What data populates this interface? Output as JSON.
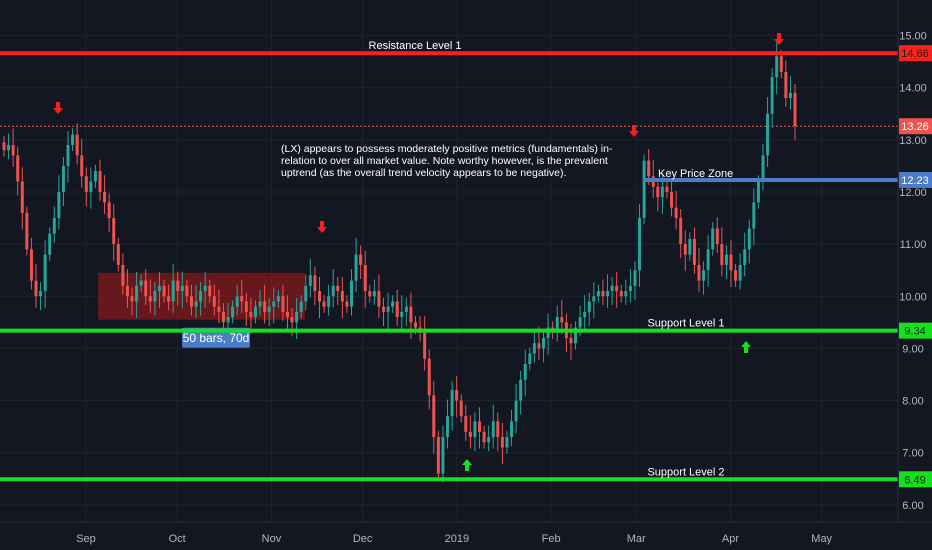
{
  "chart_data": {
    "type": "candlestick",
    "title": "",
    "xlabel": "",
    "ylabel": "",
    "ylim": [
      5.6,
      15.6
    ],
    "grid": true,
    "y_ticks": [
      "6.00",
      "7.00",
      "8.00",
      "9.00",
      "10.00",
      "11.00",
      "12.00",
      "13.00",
      "14.00",
      "15.00"
    ],
    "y_tick_values": [
      6,
      7,
      8,
      9,
      10,
      11,
      12,
      13,
      14,
      15
    ],
    "x_ticks": [
      {
        "label": "Sep",
        "day": 0
      },
      {
        "label": "Oct",
        "day": 30
      },
      {
        "label": "Nov",
        "day": 61
      },
      {
        "label": "Dec",
        "day": 91
      },
      {
        "label": "2019",
        "day": 122
      },
      {
        "label": "Feb",
        "day": 153
      },
      {
        "label": "Mar",
        "day": 181
      },
      {
        "label": "Apr",
        "day": 212
      },
      {
        "label": "May",
        "day": 242
      }
    ],
    "levels": [
      {
        "name": "Resistance Level 1",
        "value": 14.66,
        "label": "14.66",
        "color": "#ff1e1e",
        "style": "solid"
      },
      {
        "name": "Key Price Zone",
        "value": 12.23,
        "label": "12.23",
        "color": "#4a7cc7",
        "style": "solid"
      },
      {
        "name": "Support Level 1",
        "value": 9.34,
        "label": "9.34",
        "color": "#14e01e",
        "style": "solid"
      },
      {
        "name": "Support Level 2",
        "value": 6.49,
        "label": "6.49",
        "color": "#14e01e",
        "style": "solid"
      }
    ],
    "last_price": {
      "value": 13.26,
      "label": "13.26",
      "color": "#ef5350"
    },
    "annotation": "(LX) appears to possess moderately positive metrics (fundamentals) in-relation to over all market value. Note worthy however, is the prevalent uptrend (as the overall trend velocity appears to be negative).",
    "annotation_lines": [
      "(LX) appears to possess moderately positive metrics (fundamentals) in-",
      "relation to over all market value. Note worthy however, is the prevalent",
      "uptrend (as the overall trend velocity appears to be negative)."
    ],
    "range_box": {
      "label": "50 bars, 70d",
      "from_day": 4,
      "to_day": 72,
      "low": 9.55,
      "high": 10.45
    },
    "closes": [
      12.8,
      12.9,
      12.7,
      12.2,
      11.6,
      10.9,
      10.3,
      10.0,
      10.1,
      10.8,
      11.2,
      11.5,
      12.0,
      12.5,
      12.9,
      13.1,
      12.7,
      12.3,
      12.0,
      12.2,
      12.4,
      12.0,
      11.8,
      11.5,
      11.0,
      10.6,
      10.2,
      10.0,
      9.9,
      10.2,
      10.3,
      10.0,
      9.9,
      10.1,
      10.2,
      10.0,
      9.9,
      10.3,
      10.1,
      10.2,
      10.0,
      9.8,
      9.9,
      10.1,
      10.2,
      10.0,
      9.8,
      9.7,
      9.5,
      9.6,
      9.8,
      10.0,
      9.9,
      9.7,
      9.6,
      9.8,
      9.9,
      9.7,
      9.8,
      9.9,
      10.0,
      9.7,
      9.6,
      9.5,
      9.7,
      9.9,
      10.2,
      10.4,
      10.1,
      9.9,
      9.8,
      10.0,
      10.2,
      10.1,
      9.9,
      9.8,
      10.3,
      10.8,
      10.6,
      10.1,
      10.0,
      10.1,
      9.8,
      9.7,
      9.8,
      9.9,
      9.6,
      9.7,
      9.8,
      9.5,
      9.4,
      9.3,
      8.8,
      8.1,
      7.3,
      6.6,
      7.3,
      7.7,
      8.2,
      8.0,
      7.7,
      7.4,
      7.3,
      7.6,
      7.4,
      7.2,
      7.3,
      7.6,
      7.3,
      7.1,
      7.3,
      7.6,
      8.0,
      8.4,
      8.7,
      8.9,
      9.1,
      9.0,
      9.2,
      9.4,
      9.3,
      9.6,
      9.5,
      9.2,
      9.1,
      9.4,
      9.6,
      9.7,
      9.9,
      10.0,
      10.1,
      10.0,
      10.1,
      10.2,
      10.1,
      10.0,
      10.1,
      10.2,
      10.5,
      11.5,
      12.6,
      12.3,
      12.1,
      11.9,
      12.1,
      12.0,
      11.7,
      11.5,
      11.0,
      10.8,
      11.1,
      10.6,
      10.3,
      10.5,
      10.9,
      11.3,
      11.0,
      10.6,
      10.8,
      10.5,
      10.3,
      10.6,
      10.9,
      11.3,
      11.8,
      12.2,
      12.7,
      13.5,
      14.2,
      14.6,
      14.3,
      13.8,
      13.9,
      13.26
    ]
  }
}
